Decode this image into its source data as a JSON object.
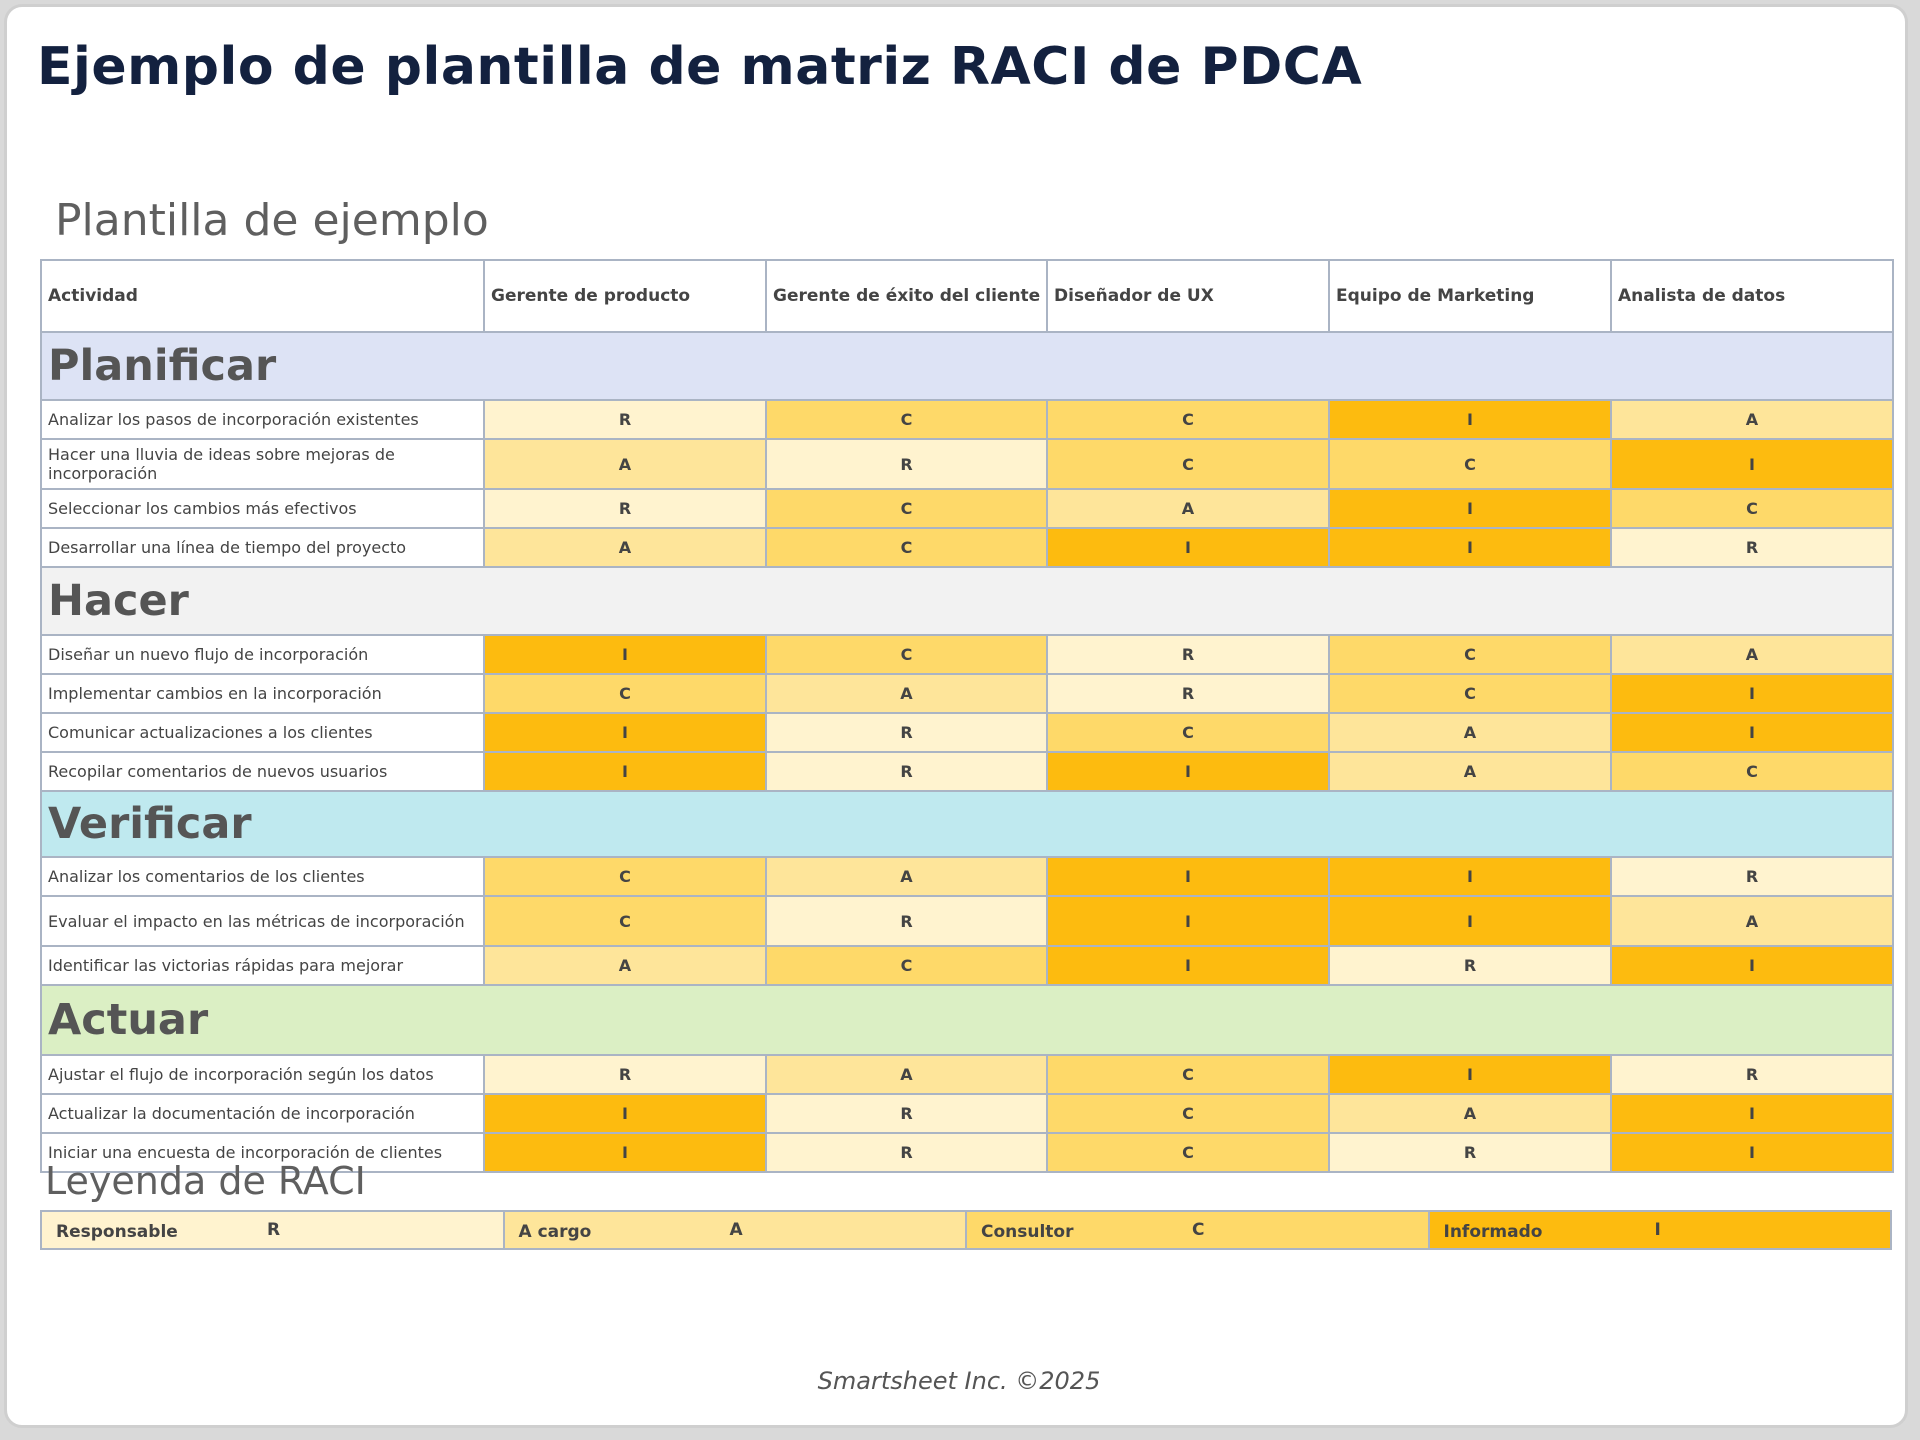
{
  "title": "Ejemplo de plantilla de matriz RACI de PDCA",
  "subtitle": "Plantilla de ejemplo",
  "table": {
    "headers": [
      "Actividad",
      "Gerente de producto",
      "Gerente de éxito del cliente",
      "Diseñador de UX",
      "Equipo de Marketing",
      "Analista de datos"
    ],
    "sections": [
      {
        "name": "Planificar",
        "rows": [
          {
            "activity": "Analizar los pasos de incorporación existentes",
            "values": [
              "R",
              "C",
              "C",
              "I",
              "A"
            ]
          },
          {
            "activity": "Hacer una lluvia de ideas sobre mejoras de incorporación",
            "values": [
              "A",
              "R",
              "C",
              "C",
              "I"
            ]
          },
          {
            "activity": "Seleccionar los cambios más efectivos",
            "values": [
              "R",
              "C",
              "A",
              "I",
              "C"
            ]
          },
          {
            "activity": "Desarrollar una línea de tiempo del proyecto",
            "values": [
              "A",
              "C",
              "I",
              "I",
              "R"
            ]
          }
        ]
      },
      {
        "name": "Hacer",
        "rows": [
          {
            "activity": "Diseñar un nuevo flujo de incorporación",
            "values": [
              "I",
              "C",
              "R",
              "C",
              "A"
            ]
          },
          {
            "activity": "Implementar cambios en la incorporación",
            "values": [
              "C",
              "A",
              "R",
              "C",
              "I"
            ]
          },
          {
            "activity": "Comunicar actualizaciones a los clientes",
            "values": [
              "I",
              "R",
              "C",
              "A",
              "I"
            ]
          },
          {
            "activity": "Recopilar comentarios de nuevos usuarios",
            "values": [
              "I",
              "R",
              "I",
              "A",
              "C"
            ]
          }
        ]
      },
      {
        "name": "Verificar",
        "rows": [
          {
            "activity": "Analizar los comentarios de los clientes",
            "values": [
              "C",
              "A",
              "I",
              "I",
              "R"
            ]
          },
          {
            "activity": "Evaluar el impacto en las métricas de incorporación",
            "values": [
              "C",
              "R",
              "I",
              "I",
              "A"
            ]
          },
          {
            "activity": "Identificar las victorias rápidas para mejorar",
            "values": [
              "A",
              "C",
              "I",
              "R",
              "I"
            ]
          }
        ]
      },
      {
        "name": "Actuar",
        "rows": [
          {
            "activity": "Ajustar el flujo de incorporación según los datos",
            "values": [
              "R",
              "A",
              "C",
              "I",
              "R"
            ]
          },
          {
            "activity": "Actualizar la documentación de incorporación",
            "values": [
              "I",
              "R",
              "C",
              "A",
              "I"
            ]
          },
          {
            "activity": "Iniciar una encuesta de incorporación de clientes",
            "values": [
              "I",
              "R",
              "C",
              "R",
              "I"
            ]
          }
        ]
      }
    ]
  },
  "legend": {
    "title": "Leyenda de RACI",
    "items": [
      {
        "label": "Responsable",
        "letter": "R",
        "color": "#fff3cf"
      },
      {
        "label": "A cargo",
        "letter": "A",
        "color": "#fee59a"
      },
      {
        "label": "Consultor",
        "letter": "C",
        "color": "#fed969"
      },
      {
        "label": "Informado",
        "letter": "I",
        "color": "#fdbb0f"
      }
    ]
  },
  "section_colors": {
    "Planificar": "#dde3f5",
    "Hacer": "#f2f2f2",
    "Verificar": "#bfe9ef",
    "Actuar": "#dbefc4"
  },
  "footer": "Smartsheet Inc. ©2025"
}
